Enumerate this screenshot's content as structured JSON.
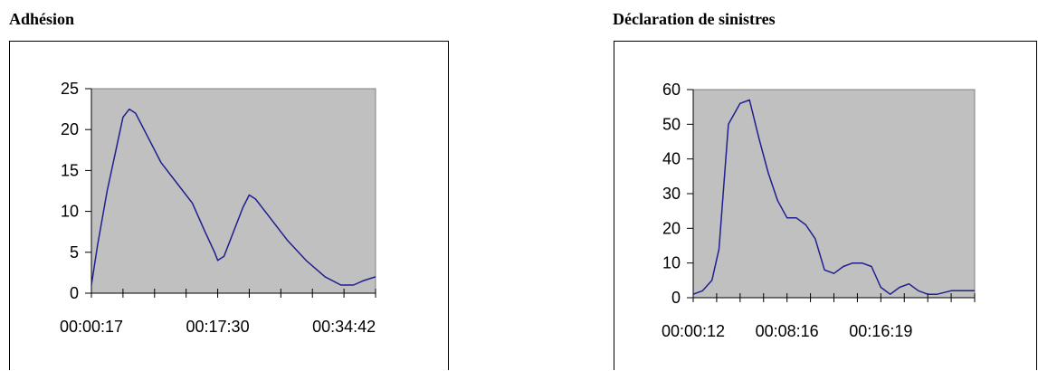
{
  "charts": [
    {
      "title": "Adhésion",
      "chart_data": {
        "type": "line",
        "title": "Adhésion",
        "xlabel": "",
        "ylabel": "",
        "ylim": [
          0,
          25
        ],
        "yticks": [
          0,
          5,
          10,
          15,
          20,
          25
        ],
        "x_tick_labels": [
          "00:00:17",
          "00:17:30",
          "00:34:42"
        ],
        "x_tick_label_indices": [
          0,
          4,
          8
        ],
        "x_tick_count": 10,
        "x_range": [
          0,
          9
        ],
        "grid": false,
        "series_color": "#1f1f8f",
        "plot_bg": "#c0c0c0",
        "x": [
          0.0,
          0.2,
          0.5,
          1.0,
          1.2,
          1.4,
          1.8,
          2.2,
          2.7,
          3.2,
          3.6,
          3.9,
          4.0,
          4.2,
          4.5,
          4.8,
          5.0,
          5.2,
          5.6,
          6.2,
          6.8,
          7.4,
          7.9,
          8.3,
          8.6,
          9.0
        ],
        "values": [
          1.0,
          6.0,
          12.5,
          21.5,
          22.5,
          22.0,
          19.0,
          16.0,
          13.5,
          11.0,
          7.5,
          5.0,
          4.0,
          4.5,
          7.5,
          10.5,
          12.0,
          11.5,
          9.5,
          6.5,
          4.0,
          2.0,
          1.0,
          1.0,
          1.5,
          2.0
        ]
      }
    },
    {
      "title": "Déclaration de sinistres",
      "chart_data": {
        "type": "line",
        "title": "Déclaration de sinistres",
        "xlabel": "",
        "ylabel": "",
        "ylim": [
          0,
          60
        ],
        "yticks": [
          0,
          10,
          20,
          30,
          40,
          50,
          60
        ],
        "x_tick_labels": [
          "00:00:12",
          "00:08:16",
          "00:16:19"
        ],
        "x_tick_label_indices": [
          0,
          4,
          8
        ],
        "x_tick_count": 13,
        "x_range": [
          0,
          12
        ],
        "grid": false,
        "series_color": "#1f1f8f",
        "plot_bg": "#c0c0c0",
        "x": [
          0.0,
          0.4,
          0.8,
          1.1,
          1.5,
          2.0,
          2.4,
          2.8,
          3.2,
          3.6,
          4.0,
          4.4,
          4.8,
          5.2,
          5.6,
          6.0,
          6.4,
          6.8,
          7.2,
          7.6,
          8.0,
          8.4,
          8.8,
          9.2,
          9.6,
          10.0,
          10.4,
          11.0,
          12.0
        ],
        "values": [
          1,
          2,
          5,
          14,
          50,
          56,
          57,
          46,
          36,
          28,
          23,
          23,
          21,
          17,
          8,
          7,
          9,
          10,
          10,
          9,
          3,
          1,
          3,
          4,
          2,
          1,
          1,
          2,
          2
        ]
      }
    }
  ]
}
